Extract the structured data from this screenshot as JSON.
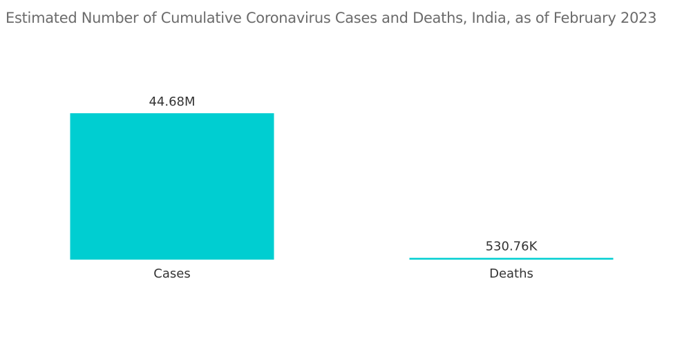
{
  "chart_data": {
    "type": "bar",
    "title": "Estimated Number of Cumulative Coronavirus Cases and Deaths, India, as of February 2023",
    "categories": [
      "Cases",
      "Deaths"
    ],
    "values": [
      44680000,
      530760
    ],
    "value_labels": [
      "44.68M",
      "530.76K"
    ],
    "xlabel": "",
    "ylabel": "",
    "ylim": [
      0,
      44680000
    ],
    "grid": false,
    "legend": "none",
    "colors": {
      "bar": "#00CED1"
    }
  }
}
